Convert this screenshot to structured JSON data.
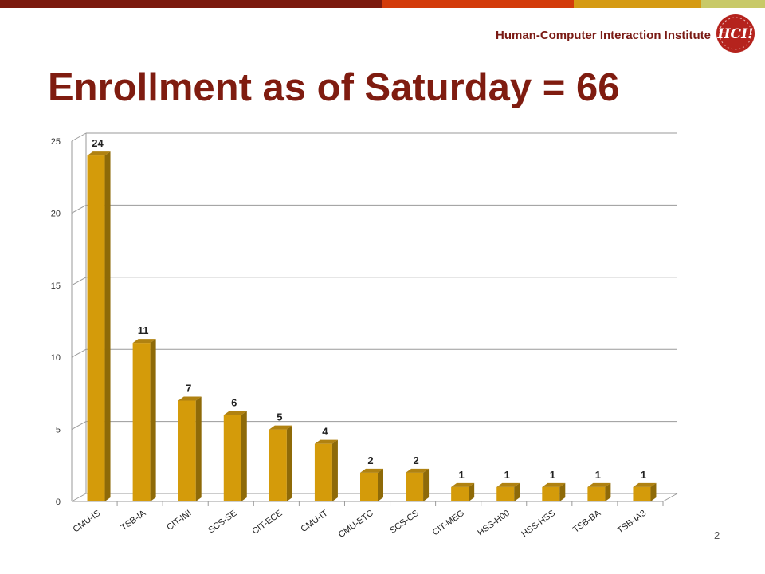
{
  "header": {
    "institute_name": "Human-Computer Interaction Institute",
    "logo_text": "HCI!",
    "logo_color": "#b5231d",
    "bar_colors": [
      "#7b1a0e",
      "#d33b0a",
      "#d59a13",
      "#c8c968"
    ]
  },
  "slide": {
    "title": "Enrollment as of Saturday = 66",
    "page_number": "2"
  },
  "chart_data": {
    "type": "bar",
    "categories": [
      "CMU-IS",
      "TSB-IA",
      "CIT-INI",
      "SCS-SE",
      "CIT-ECE",
      "CMU-IT",
      "CMU-ETC",
      "SCS-CS",
      "CIT-MEG",
      "HSS-H00",
      "HSS-HSS",
      "TSB-BA",
      "TSB-IA3"
    ],
    "values": [
      24,
      11,
      7,
      6,
      5,
      4,
      2,
      2,
      1,
      1,
      1,
      1,
      1
    ],
    "data_labels": [
      "24",
      "11",
      "7",
      "6",
      "5",
      "4",
      "2",
      "2",
      "1",
      "1",
      "1",
      "1",
      "1"
    ],
    "ylim": [
      0,
      25
    ],
    "yticks": [
      "0",
      "5",
      "10",
      "15",
      "20",
      "25"
    ],
    "grid": true,
    "bar_style": "3d",
    "bar_color": "#d49b0a",
    "bar_side_color": "#8e6a08",
    "bar_top_color": "#b08211"
  }
}
